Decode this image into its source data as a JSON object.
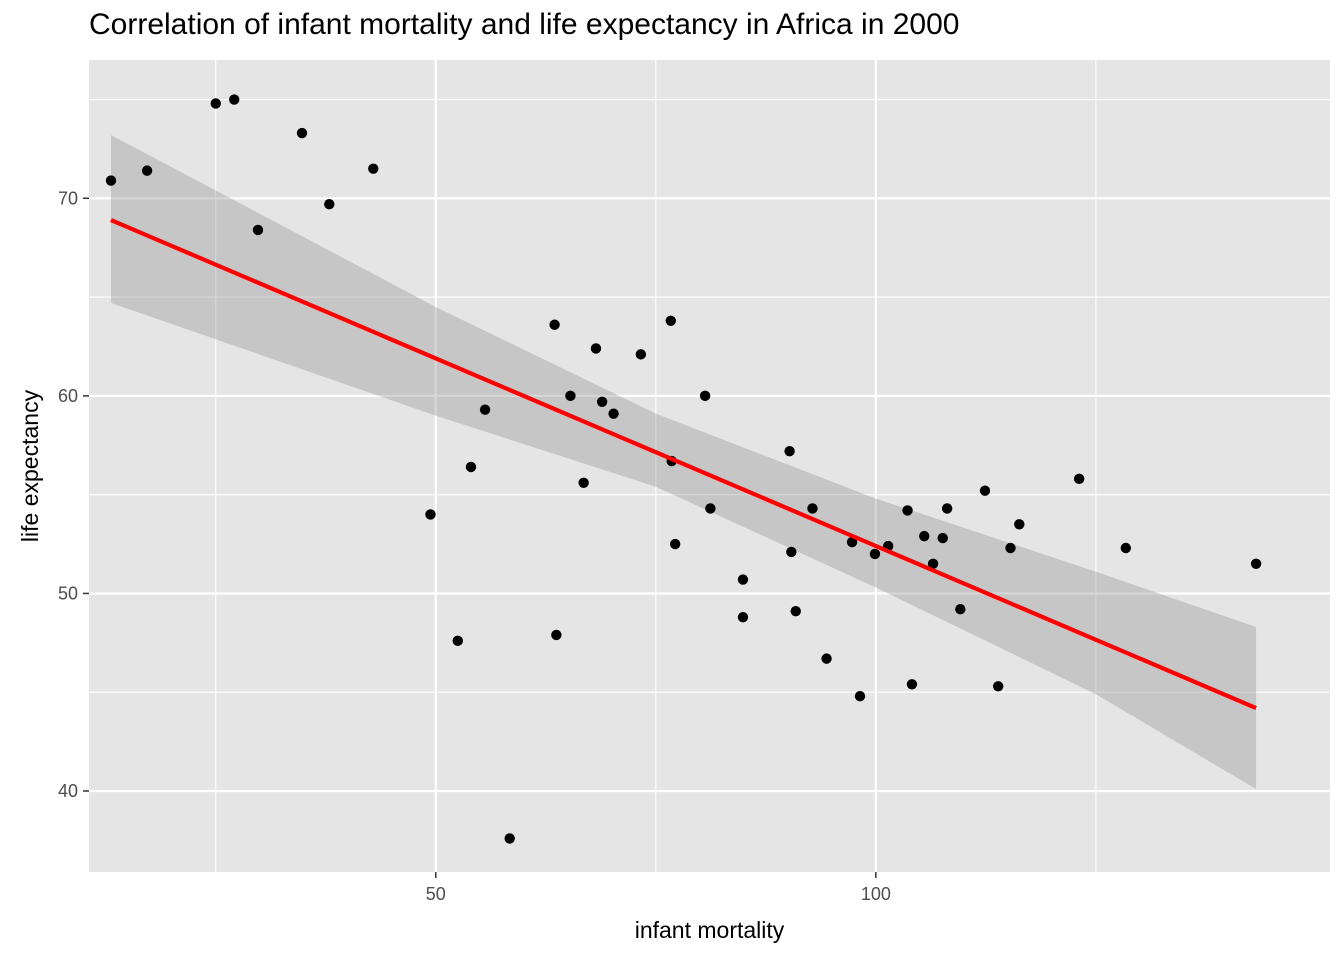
{
  "chart_data": {
    "type": "scatter",
    "title": "Correlation of infant mortality and life expectancy in Africa in 2000",
    "xlabel": "infant mortality",
    "ylabel": "life expectancy",
    "xlim": [
      10.6,
      151.6
    ],
    "ylim": [
      35.9,
      77.0
    ],
    "x_ticks": [
      50,
      100
    ],
    "y_ticks": [
      40,
      50,
      60,
      70
    ],
    "grid": true,
    "legend": "none",
    "colors": {
      "panel": "#e5e5e5",
      "grid": "#ffffff",
      "points": "#000000",
      "fit_line": "#ff0000",
      "confidence_band": "#999999"
    },
    "points": [
      [
        13.1,
        70.9
      ],
      [
        17.2,
        71.4
      ],
      [
        25.0,
        74.8
      ],
      [
        27.1,
        75.0
      ],
      [
        29.8,
        68.4
      ],
      [
        34.8,
        73.3
      ],
      [
        37.9,
        69.7
      ],
      [
        42.9,
        71.5
      ],
      [
        49.4,
        54.0
      ],
      [
        52.5,
        47.6
      ],
      [
        54.0,
        56.4
      ],
      [
        55.6,
        59.3
      ],
      [
        58.4,
        37.6
      ],
      [
        63.5,
        63.6
      ],
      [
        63.7,
        47.9
      ],
      [
        65.3,
        60.0
      ],
      [
        66.8,
        55.6
      ],
      [
        68.2,
        62.4
      ],
      [
        68.9,
        59.7
      ],
      [
        70.2,
        59.1
      ],
      [
        73.3,
        62.1
      ],
      [
        76.7,
        63.8
      ],
      [
        76.8,
        56.7
      ],
      [
        77.2,
        52.5
      ],
      [
        80.6,
        60.0
      ],
      [
        81.2,
        54.3
      ],
      [
        84.9,
        50.7
      ],
      [
        84.9,
        48.8
      ],
      [
        90.2,
        57.2
      ],
      [
        90.4,
        52.1
      ],
      [
        90.9,
        49.1
      ],
      [
        92.8,
        54.3
      ],
      [
        94.4,
        46.7
      ],
      [
        97.3,
        52.6
      ],
      [
        98.2,
        44.8
      ],
      [
        99.9,
        52.0
      ],
      [
        101.4,
        52.4
      ],
      [
        103.6,
        54.2
      ],
      [
        104.1,
        45.4
      ],
      [
        105.5,
        52.9
      ],
      [
        106.5,
        51.5
      ],
      [
        107.6,
        52.8
      ],
      [
        108.1,
        54.3
      ],
      [
        109.6,
        49.2
      ],
      [
        112.4,
        55.2
      ],
      [
        113.9,
        45.3
      ],
      [
        115.3,
        52.3
      ],
      [
        116.3,
        53.5
      ],
      [
        123.1,
        55.8
      ],
      [
        128.4,
        52.3
      ],
      [
        143.2,
        51.5
      ]
    ],
    "fit_line": {
      "x": [
        13.1,
        143.2
      ],
      "y": [
        68.9,
        44.2
      ]
    },
    "confidence_band": {
      "x": [
        13.1,
        50.0,
        75.0,
        100.0,
        125.0,
        143.2
      ],
      "lower": [
        64.7,
        59.0,
        55.4,
        50.3,
        44.9,
        40.1
      ],
      "upper": [
        73.2,
        64.5,
        59.1,
        54.8,
        51.1,
        48.3
      ]
    }
  }
}
